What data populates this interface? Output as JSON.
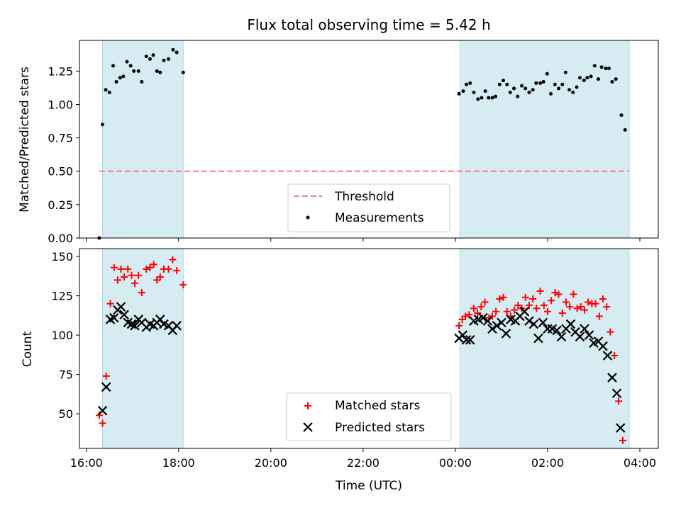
{
  "chart_data": [
    {
      "type": "scatter",
      "title": "Flux total observing time = 5.42 h",
      "ylabel": "Matched/Predicted stars",
      "ylim": [
        0,
        1.48
      ],
      "yticks": [
        0.0,
        0.25,
        0.5,
        0.75,
        1.0,
        1.25
      ],
      "ytick_labels": [
        "0.00",
        "0.25",
        "0.50",
        "0.75",
        "1.00",
        "1.25"
      ],
      "threshold": {
        "name": "Threshold",
        "value": 0.5,
        "color": "#f08080"
      },
      "shaded_intervals": [
        [
          16.35,
          18.1
        ],
        [
          24.1,
          27.77
        ]
      ],
      "legend_position": "lower center",
      "series": [
        {
          "name": "Measurements",
          "color": "#000000",
          "points": [
            [
              16.28,
              0.0
            ],
            [
              16.35,
              0.85
            ],
            [
              16.42,
              1.11
            ],
            [
              16.5,
              1.09
            ],
            [
              16.58,
              1.29
            ],
            [
              16.65,
              1.17
            ],
            [
              16.73,
              1.2
            ],
            [
              16.8,
              1.21
            ],
            [
              16.88,
              1.32
            ],
            [
              16.96,
              1.29
            ],
            [
              17.03,
              1.25
            ],
            [
              17.13,
              1.25
            ],
            [
              17.2,
              1.17
            ],
            [
              17.3,
              1.36
            ],
            [
              17.38,
              1.34
            ],
            [
              17.45,
              1.37
            ],
            [
              17.53,
              1.25
            ],
            [
              17.6,
              1.24
            ],
            [
              17.68,
              1.33
            ],
            [
              17.78,
              1.34
            ],
            [
              17.88,
              1.41
            ],
            [
              17.96,
              1.39
            ],
            [
              18.1,
              1.24
            ],
            [
              24.08,
              1.08
            ],
            [
              24.17,
              1.1
            ],
            [
              24.24,
              1.15
            ],
            [
              24.32,
              1.16
            ],
            [
              24.4,
              1.09
            ],
            [
              24.49,
              1.04
            ],
            [
              24.57,
              1.05
            ],
            [
              24.65,
              1.1
            ],
            [
              24.72,
              1.05
            ],
            [
              24.8,
              1.05
            ],
            [
              24.87,
              1.06
            ],
            [
              24.96,
              1.15
            ],
            [
              25.04,
              1.18
            ],
            [
              25.12,
              1.15
            ],
            [
              25.19,
              1.09
            ],
            [
              25.27,
              1.12
            ],
            [
              25.35,
              1.06
            ],
            [
              25.44,
              1.14
            ],
            [
              25.52,
              1.12
            ],
            [
              25.6,
              1.09
            ],
            [
              25.68,
              1.11
            ],
            [
              25.75,
              1.16
            ],
            [
              25.84,
              1.16
            ],
            [
              25.91,
              1.17
            ],
            [
              25.99,
              1.23
            ],
            [
              26.07,
              1.08
            ],
            [
              26.16,
              1.15
            ],
            [
              26.24,
              1.12
            ],
            [
              26.32,
              1.15
            ],
            [
              26.39,
              1.24
            ],
            [
              26.47,
              1.11
            ],
            [
              26.55,
              1.09
            ],
            [
              26.63,
              1.13
            ],
            [
              26.7,
              1.2
            ],
            [
              26.79,
              1.18
            ],
            [
              26.86,
              1.2
            ],
            [
              26.94,
              1.21
            ],
            [
              27.02,
              1.29
            ],
            [
              27.1,
              1.19
            ],
            [
              27.17,
              1.28
            ],
            [
              27.26,
              1.27
            ],
            [
              27.33,
              1.27
            ],
            [
              27.4,
              1.17
            ],
            [
              27.48,
              1.19
            ],
            [
              27.6,
              0.92
            ],
            [
              27.68,
              0.81
            ]
          ]
        }
      ]
    },
    {
      "type": "scatter",
      "xlabel": "Time (UTC)",
      "ylabel": "Count",
      "xlim": [
        15.85,
        28.4
      ],
      "ylim": [
        28,
        155
      ],
      "xticks": [
        16,
        18,
        20,
        22,
        24,
        26,
        28
      ],
      "xtick_labels": [
        "16:00",
        "18:00",
        "20:00",
        "22:00",
        "00:00",
        "02:00",
        "04:00"
      ],
      "yticks": [
        50,
        75,
        100,
        125,
        150
      ],
      "ytick_labels": [
        "50",
        "75",
        "100",
        "125",
        "150"
      ],
      "shaded_intervals": [
        [
          16.35,
          18.1
        ],
        [
          24.1,
          27.77
        ]
      ],
      "shade_color": "#add8e6",
      "legend_position": "lower center",
      "series": [
        {
          "name": "Matched stars",
          "marker": "plus",
          "color": "#ff0000",
          "points": [
            [
              16.28,
              49
            ],
            [
              16.35,
              44
            ],
            [
              16.43,
              74
            ],
            [
              16.52,
              120
            ],
            [
              16.6,
              143
            ],
            [
              16.68,
              135
            ],
            [
              16.75,
              142
            ],
            [
              16.82,
              137
            ],
            [
              16.9,
              142
            ],
            [
              16.98,
              138
            ],
            [
              17.05,
              133
            ],
            [
              17.13,
              138
            ],
            [
              17.2,
              127
            ],
            [
              17.3,
              142
            ],
            [
              17.38,
              143
            ],
            [
              17.46,
              145
            ],
            [
              17.53,
              135
            ],
            [
              17.6,
              137
            ],
            [
              17.68,
              142
            ],
            [
              17.78,
              142
            ],
            [
              17.87,
              148
            ],
            [
              17.96,
              141
            ],
            [
              18.1,
              132
            ],
            [
              24.08,
              106
            ],
            [
              24.15,
              110
            ],
            [
              24.22,
              112
            ],
            [
              24.3,
              113
            ],
            [
              24.4,
              117
            ],
            [
              24.48,
              114
            ],
            [
              24.56,
              118
            ],
            [
              24.64,
              121
            ],
            [
              24.73,
              111
            ],
            [
              24.8,
              112
            ],
            [
              24.88,
              115
            ],
            [
              24.96,
              123
            ],
            [
              25.04,
              124
            ],
            [
              25.12,
              115
            ],
            [
              25.2,
              112
            ],
            [
              25.28,
              116
            ],
            [
              25.36,
              119
            ],
            [
              25.44,
              117
            ],
            [
              25.52,
              124
            ],
            [
              25.6,
              119
            ],
            [
              25.68,
              123
            ],
            [
              25.76,
              117
            ],
            [
              25.84,
              128
            ],
            [
              25.92,
              119
            ],
            [
              26.0,
              115
            ],
            [
              26.08,
              122
            ],
            [
              26.16,
              127
            ],
            [
              26.24,
              126
            ],
            [
              26.32,
              114
            ],
            [
              26.4,
              121
            ],
            [
              26.48,
              118
            ],
            [
              26.56,
              126
            ],
            [
              26.64,
              117
            ],
            [
              26.72,
              118
            ],
            [
              26.8,
              116
            ],
            [
              26.88,
              121
            ],
            [
              26.96,
              120
            ],
            [
              27.04,
              120
            ],
            [
              27.12,
              112
            ],
            [
              27.2,
              123
            ],
            [
              27.28,
              118
            ],
            [
              27.36,
              102
            ],
            [
              27.45,
              87
            ],
            [
              27.54,
              58
            ],
            [
              27.63,
              33
            ]
          ]
        },
        {
          "name": "Predicted stars",
          "marker": "x",
          "color": "#000000",
          "points": [
            [
              16.35,
              52
            ],
            [
              16.43,
              67
            ],
            [
              16.52,
              110
            ],
            [
              16.6,
              111
            ],
            [
              16.68,
              116
            ],
            [
              16.75,
              118
            ],
            [
              16.82,
              113
            ],
            [
              16.9,
              108
            ],
            [
              16.98,
              107
            ],
            [
              17.05,
              106
            ],
            [
              17.13,
              110
            ],
            [
              17.2,
              108
            ],
            [
              17.3,
              105
            ],
            [
              17.38,
              107
            ],
            [
              17.46,
              106
            ],
            [
              17.53,
              108
            ],
            [
              17.6,
              110
            ],
            [
              17.68,
              107
            ],
            [
              17.78,
              106
            ],
            [
              17.87,
              103
            ],
            [
              17.96,
              106
            ],
            [
              24.08,
              98
            ],
            [
              24.16,
              100
            ],
            [
              24.24,
              97
            ],
            [
              24.32,
              97
            ],
            [
              24.4,
              109
            ],
            [
              24.5,
              110
            ],
            [
              24.6,
              111
            ],
            [
              24.7,
              109
            ],
            [
              24.8,
              104
            ],
            [
              24.9,
              106
            ],
            [
              25.0,
              108
            ],
            [
              25.1,
              101
            ],
            [
              25.2,
              110
            ],
            [
              25.3,
              109
            ],
            [
              25.4,
              112
            ],
            [
              25.5,
              115
            ],
            [
              25.6,
              109
            ],
            [
              25.7,
              107
            ],
            [
              25.8,
              98
            ],
            [
              25.9,
              108
            ],
            [
              26.0,
              104
            ],
            [
              26.1,
              104
            ],
            [
              26.2,
              103
            ],
            [
              26.3,
              99
            ],
            [
              26.4,
              104
            ],
            [
              26.5,
              107
            ],
            [
              26.6,
              102
            ],
            [
              26.7,
              99
            ],
            [
              26.8,
              104
            ],
            [
              26.9,
              100
            ],
            [
              27.0,
              95
            ],
            [
              27.1,
              96
            ],
            [
              27.2,
              93
            ],
            [
              27.3,
              87
            ],
            [
              27.4,
              73
            ],
            [
              27.5,
              63
            ],
            [
              27.58,
              41
            ]
          ]
        }
      ]
    }
  ]
}
